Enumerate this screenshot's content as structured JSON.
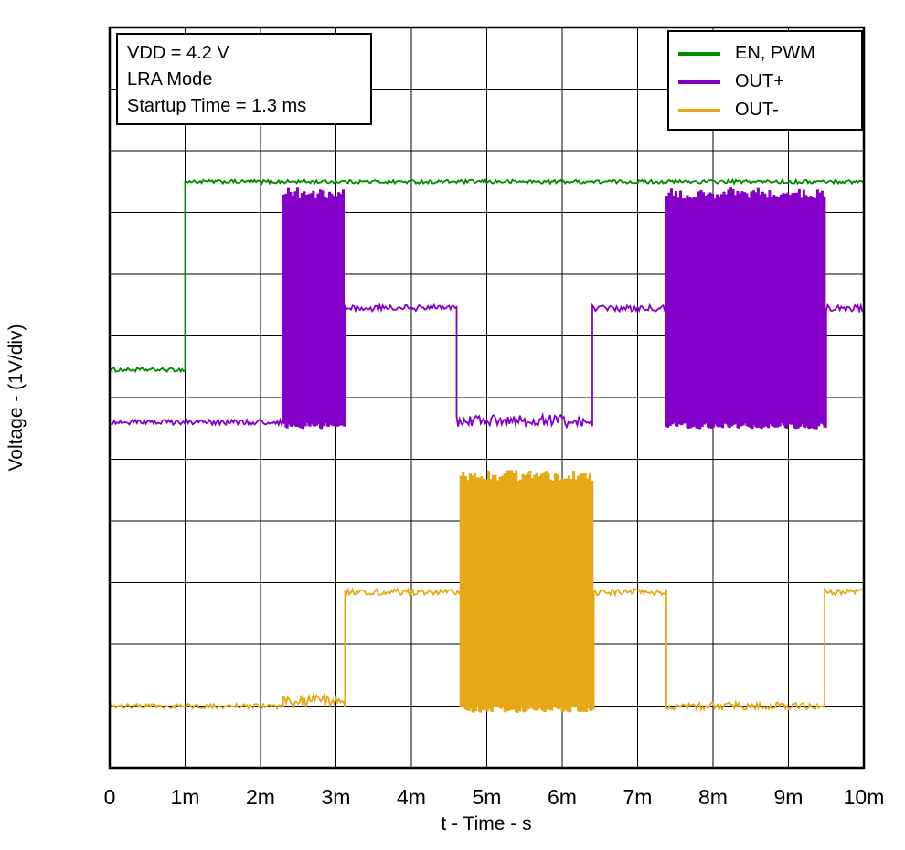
{
  "annotations": {
    "lines": [
      "VDD = 4.2 V",
      "LRA Mode",
      "Startup Time = 1.3 ms"
    ]
  },
  "chart_data": {
    "type": "line",
    "title": "",
    "xlabel": "t - Time - s",
    "ylabel": "Voltage - (1V/div)",
    "x_ticks": [
      "0",
      "1m",
      "2m",
      "3m",
      "4m",
      "5m",
      "6m",
      "7m",
      "8m",
      "9m",
      "10m"
    ],
    "x_range_ms": [
      0,
      10
    ],
    "y_divisions": 12,
    "volts_per_div": 1,
    "grid": true,
    "legend_position": "top-right",
    "frame_color": "#000000",
    "series": [
      {
        "name": "EN, PWM",
        "color": "#008a00",
        "segments": [
          {
            "kind": "level",
            "t": [
              0,
              1.0
            ],
            "level": 6.45,
            "noise": 0.03
          },
          {
            "kind": "level",
            "t": [
              1.0,
              10
            ],
            "level": 9.5,
            "noise": 0.03
          }
        ]
      },
      {
        "name": "OUT+",
        "color": "#8400c8",
        "segments": [
          {
            "kind": "level",
            "t": [
              0,
              2.3
            ],
            "level": 5.6,
            "noise": 0.04
          },
          {
            "kind": "burst",
            "t": [
              2.3,
              3.12
            ],
            "hi": 9.3,
            "lo": 5.55,
            "freq_khz": 33
          },
          {
            "kind": "level",
            "t": [
              3.12,
              4.6
            ],
            "level": 7.45,
            "noise": 0.05
          },
          {
            "kind": "level",
            "t": [
              4.6,
              6.4
            ],
            "level": 5.62,
            "noise": 0.1
          },
          {
            "kind": "level",
            "t": [
              6.4,
              7.38
            ],
            "level": 7.45,
            "noise": 0.05
          },
          {
            "kind": "burst",
            "t": [
              7.38,
              9.5
            ],
            "hi": 9.3,
            "lo": 5.55,
            "freq_khz": 33
          },
          {
            "kind": "level",
            "t": [
              9.5,
              10
            ],
            "level": 7.45,
            "noise": 0.05
          }
        ]
      },
      {
        "name": "OUT-",
        "color": "#e6a817",
        "segments": [
          {
            "kind": "level",
            "t": [
              0,
              2.3
            ],
            "level": 1.0,
            "noise": 0.04
          },
          {
            "kind": "level",
            "t": [
              2.3,
              3.12
            ],
            "level": 1.08,
            "noise": 0.1
          },
          {
            "kind": "level",
            "t": [
              3.12,
              4.65
            ],
            "level": 2.85,
            "noise": 0.05
          },
          {
            "kind": "burst",
            "t": [
              4.65,
              6.42
            ],
            "hi": 4.72,
            "lo": 0.95,
            "freq_khz": 33
          },
          {
            "kind": "level",
            "t": [
              6.42,
              7.38
            ],
            "level": 2.85,
            "noise": 0.05
          },
          {
            "kind": "level",
            "t": [
              7.38,
              9.48
            ],
            "level": 1.0,
            "noise": 0.06
          },
          {
            "kind": "level",
            "t": [
              9.48,
              10
            ],
            "level": 2.85,
            "noise": 0.05
          }
        ]
      }
    ]
  }
}
